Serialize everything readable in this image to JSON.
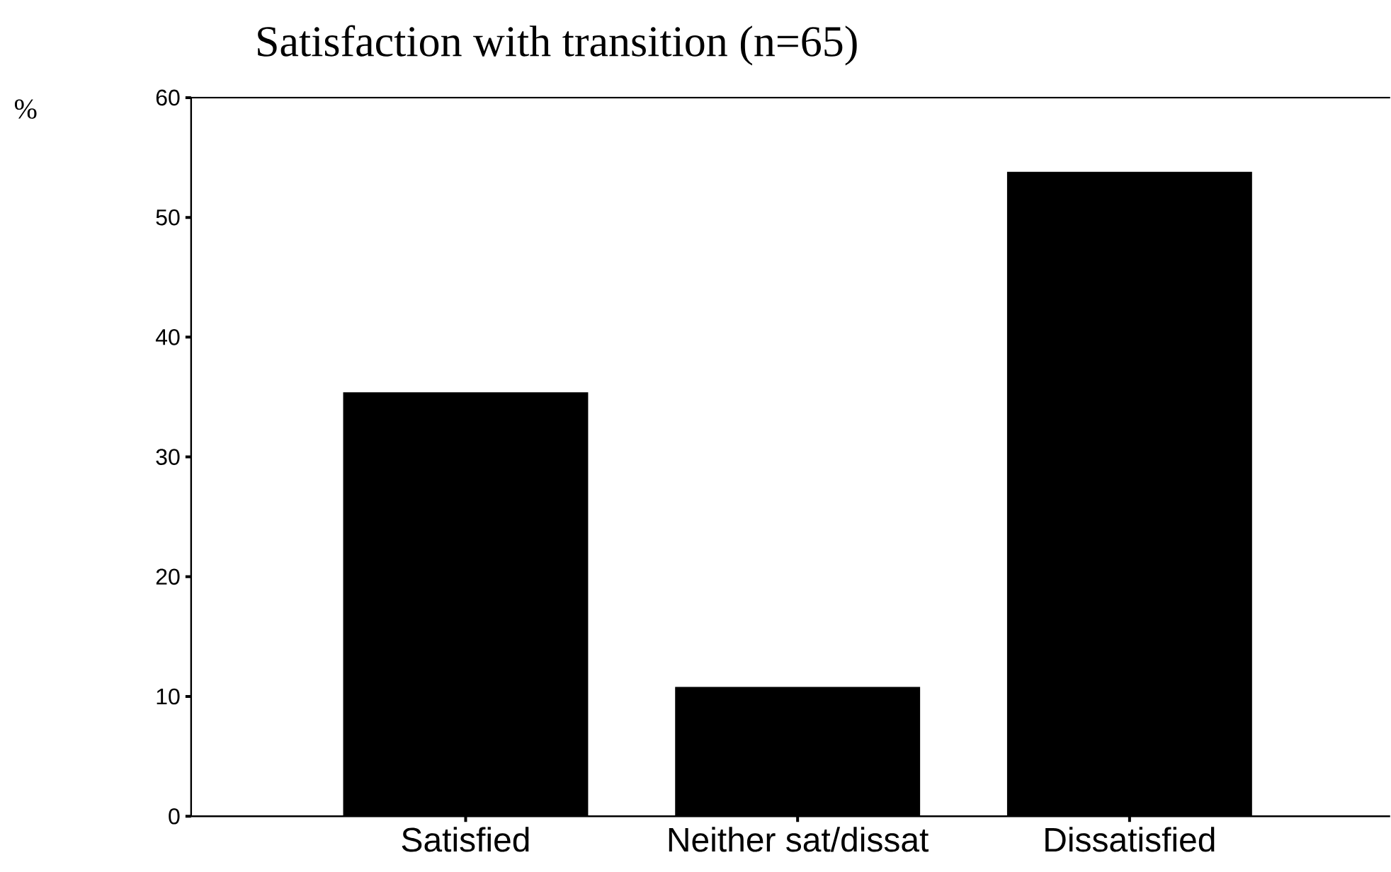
{
  "chart_data": {
    "type": "bar",
    "title": "Satisfaction with transition (n=65)",
    "ylabel": "%",
    "categories": [
      "Satisfied",
      "Neither sat/dissat",
      "Dissatisfied"
    ],
    "values": [
      35.4,
      10.8,
      53.8
    ],
    "color": "#000000",
    "ylim": [
      0,
      60
    ],
    "yticks": [
      0,
      10,
      20,
      30,
      40,
      50,
      60
    ]
  }
}
